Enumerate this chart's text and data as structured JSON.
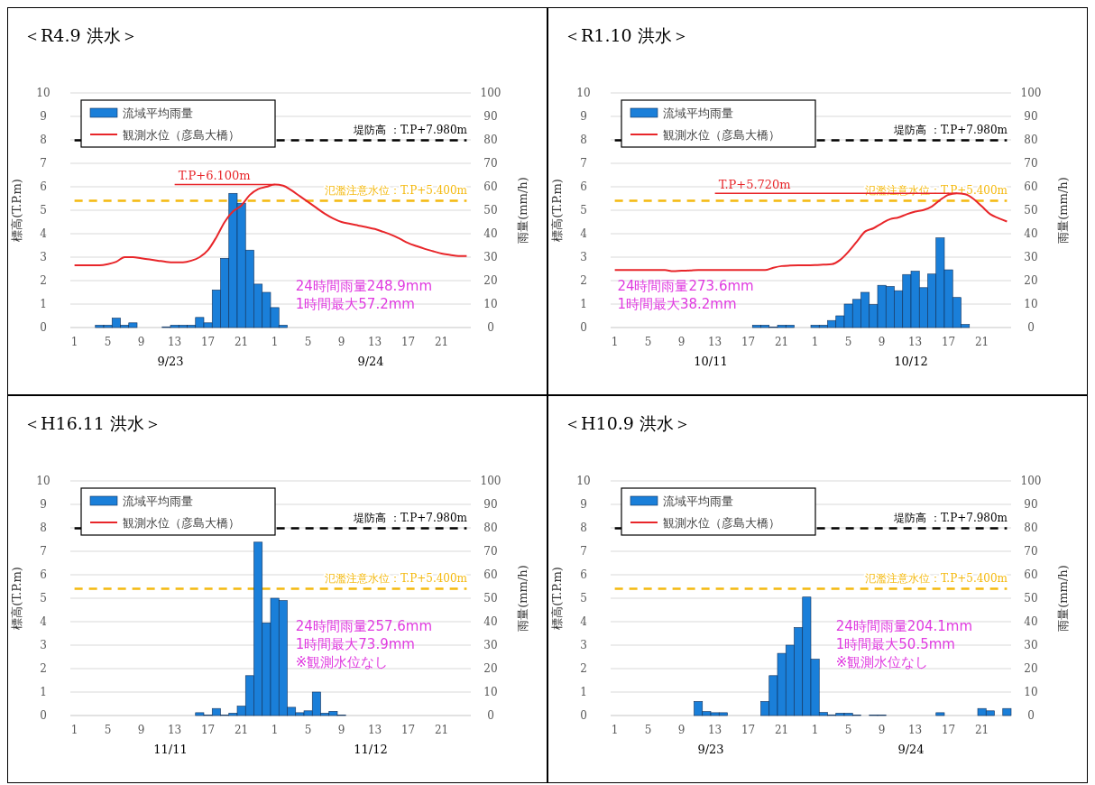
{
  "chart_data": [
    {
      "type": "bar",
      "title": "＜R4.9 洪水＞",
      "categories": [
        "1",
        null,
        null,
        null,
        "5",
        null,
        null,
        null,
        "9",
        null,
        null,
        null,
        "13",
        null,
        null,
        null,
        "17",
        null,
        null,
        null,
        "21",
        null,
        null,
        null,
        "1",
        null,
        null,
        null,
        "5",
        null,
        null,
        null,
        "9",
        null,
        null,
        null,
        "13",
        null,
        null,
        null,
        "17",
        null,
        null,
        null,
        "21",
        null,
        null,
        null
      ],
      "series": [
        {
          "name": "流域平均雨量",
          "axis": "y2",
          "color": "#1a7fd9",
          "values": [
            null,
            null,
            null,
            1,
            1,
            4,
            1,
            2,
            null,
            null,
            null,
            0.3,
            1,
            1,
            1,
            4.3,
            2,
            16,
            29.5,
            57.2,
            53,
            33,
            18.5,
            15,
            8.5,
            1,
            null,
            null,
            null,
            null,
            null,
            null,
            null,
            null,
            null,
            null,
            null,
            null,
            null,
            null,
            null,
            null,
            null,
            null,
            null,
            null,
            null,
            null
          ]
        },
        {
          "name": "観測水位（彦島大橋）",
          "type": "line",
          "color": "#e8262a",
          "values": [
            2.65,
            2.65,
            2.65,
            2.65,
            2.7,
            2.8,
            3.0,
            3.0,
            2.95,
            2.9,
            2.85,
            2.8,
            2.78,
            2.78,
            2.85,
            3.0,
            3.3,
            3.85,
            4.5,
            4.95,
            5.2,
            5.65,
            5.9,
            6.0,
            6.1,
            6.05,
            5.85,
            5.6,
            5.35,
            5.1,
            4.85,
            4.65,
            4.5,
            4.42,
            4.35,
            4.28,
            4.2,
            4.08,
            3.95,
            3.78,
            3.6,
            3.47,
            3.35,
            3.25,
            3.15,
            3.1,
            3.05,
            3.05
          ]
        }
      ],
      "ylabel": "標高(T.P.m)",
      "y2label": "雨量(mm/h)",
      "ylim": [
        0,
        10
      ],
      "yticks": [
        0,
        1,
        2,
        3,
        4,
        5,
        6,
        7,
        8,
        9,
        10
      ],
      "y2lim": [
        0,
        100
      ],
      "y2ticks": [
        0,
        10,
        20,
        30,
        40,
        50,
        60,
        70,
        80,
        90,
        100
      ],
      "grid": "y",
      "legend": "top left",
      "ref_lines": [
        {
          "axis": "y",
          "value": 7.98,
          "label": "堤防高 ：T.P+7.980m",
          "color": "#000000",
          "line_style": "dashed"
        },
        {
          "axis": "y",
          "value": 5.4,
          "label": "氾濫注意水位：T.P+5.400m",
          "color": "#f4b90f",
          "line_style": "dashed"
        },
        {
          "axis": "y",
          "value": 6.1,
          "label": "T.P+6.100m",
          "color": "#e8262a",
          "line_style": "solid"
        }
      ],
      "annotations": [
        "9/23",
        "9/24",
        "24時間雨量248.9mm",
        "1時間最大57.2mm"
      ]
    },
    {
      "type": "bar",
      "title": "＜R1.10 洪水＞",
      "categories": [
        "1",
        null,
        null,
        null,
        "5",
        null,
        null,
        null,
        "9",
        null,
        null,
        null,
        "13",
        null,
        null,
        null,
        "17",
        null,
        null,
        null,
        "21",
        null,
        null,
        null,
        "1",
        null,
        null,
        null,
        "5",
        null,
        null,
        null,
        "9",
        null,
        null,
        null,
        "13",
        null,
        null,
        null,
        "17",
        null,
        null,
        null,
        "21",
        null,
        null,
        null
      ],
      "series": [
        {
          "name": "流域平均雨量",
          "axis": "y2",
          "color": "#1a7fd9",
          "values": [
            null,
            null,
            null,
            null,
            null,
            null,
            null,
            null,
            null,
            null,
            null,
            null,
            null,
            null,
            null,
            null,
            null,
            1,
            1,
            0.2,
            1,
            1,
            null,
            null,
            1,
            1,
            3,
            5,
            10,
            12,
            15,
            9.8,
            18,
            17.5,
            15.7,
            22.6,
            24,
            17,
            22.8,
            38.2,
            24.6,
            12.8,
            1.3,
            null,
            null,
            null,
            null,
            null
          ]
        },
        {
          "name": "観測水位（彦島大橋）",
          "type": "line",
          "color": "#e8262a",
          "values": [
            2.45,
            2.45,
            2.45,
            2.45,
            2.45,
            2.45,
            2.45,
            2.4,
            2.42,
            2.43,
            2.45,
            2.45,
            2.45,
            2.45,
            2.45,
            2.45,
            2.45,
            2.45,
            2.45,
            2.55,
            2.62,
            2.64,
            2.65,
            2.65,
            2.66,
            2.68,
            2.7,
            2.88,
            3.23,
            3.66,
            4.09,
            4.23,
            4.44,
            4.62,
            4.69,
            4.83,
            4.94,
            5.01,
            5.16,
            5.44,
            5.66,
            5.72,
            5.68,
            5.48,
            5.16,
            4.83,
            4.66,
            4.52
          ]
        }
      ],
      "ylabel": "標高(T.P.m)",
      "y2label": "雨量(mm/h)",
      "ylim": [
        0,
        10
      ],
      "yticks": [
        0,
        1,
        2,
        3,
        4,
        5,
        6,
        7,
        8,
        9,
        10
      ],
      "y2lim": [
        0,
        100
      ],
      "y2ticks": [
        0,
        10,
        20,
        30,
        40,
        50,
        60,
        70,
        80,
        90,
        100
      ],
      "grid": "y",
      "legend": "top left",
      "ref_lines": [
        {
          "axis": "y",
          "value": 7.98,
          "label": "堤防高 ：T.P+7.980m",
          "color": "#000000",
          "line_style": "dashed"
        },
        {
          "axis": "y",
          "value": 5.4,
          "label": "氾濫注意水位：T.P+5.400m",
          "color": "#f4b90f",
          "line_style": "dashed"
        },
        {
          "axis": "y",
          "value": 5.72,
          "label": "T.P+5.720m",
          "color": "#e8262a",
          "line_style": "solid"
        }
      ],
      "annotations": [
        "10/11",
        "10/12",
        "24時間雨量273.6mm",
        "1時間最大38.2mm"
      ]
    },
    {
      "type": "bar",
      "title": "＜H16.11 洪水＞",
      "categories": [
        "1",
        null,
        null,
        null,
        "5",
        null,
        null,
        null,
        "9",
        null,
        null,
        null,
        "13",
        null,
        null,
        null,
        "17",
        null,
        null,
        null,
        "21",
        null,
        null,
        null,
        "1",
        null,
        null,
        null,
        "5",
        null,
        null,
        null,
        "9",
        null,
        null,
        null,
        "13",
        null,
        null,
        null,
        "17",
        null,
        null,
        null,
        "21",
        null,
        null,
        null
      ],
      "series": [
        {
          "name": "流域平均雨量",
          "axis": "y2",
          "color": "#1a7fd9",
          "values": [
            null,
            null,
            null,
            null,
            null,
            null,
            null,
            null,
            null,
            null,
            null,
            null,
            null,
            null,
            null,
            1.2,
            0.2,
            3,
            0.2,
            1,
            4,
            17,
            73.9,
            39.5,
            50,
            49,
            3.5,
            1.2,
            2,
            10,
            1,
            1.8,
            0.2,
            null,
            null,
            null,
            null,
            null,
            null,
            null,
            null,
            null,
            null,
            null,
            null,
            null,
            null,
            null
          ]
        },
        {
          "name": "観測水位（彦島大橋）",
          "type": "line",
          "color": "#e8262a",
          "values": [
            null,
            null,
            null,
            null,
            null,
            null,
            null,
            null,
            null,
            null,
            null,
            null,
            null,
            null,
            null,
            null,
            null,
            null,
            null,
            null,
            null,
            null,
            null,
            null,
            null,
            null,
            null,
            null,
            null,
            null,
            null,
            null,
            null,
            null,
            null,
            null,
            null,
            null,
            null,
            null,
            null,
            null,
            null,
            null,
            null,
            null,
            null,
            null
          ]
        }
      ],
      "ylabel": "標高(T.P.m)",
      "y2label": "雨量(mm/h)",
      "ylim": [
        0,
        10
      ],
      "yticks": [
        0,
        1,
        2,
        3,
        4,
        5,
        6,
        7,
        8,
        9,
        10
      ],
      "y2lim": [
        0,
        100
      ],
      "y2ticks": [
        0,
        10,
        20,
        30,
        40,
        50,
        60,
        70,
        80,
        90,
        100
      ],
      "grid": "y",
      "legend": "top left",
      "ref_lines": [
        {
          "axis": "y",
          "value": 7.98,
          "label": "堤防高 ：T.P+7.980m",
          "color": "#000000",
          "line_style": "dashed"
        },
        {
          "axis": "y",
          "value": 5.4,
          "label": "氾濫注意水位：T.P+5.400m",
          "color": "#f4b90f",
          "line_style": "dashed"
        }
      ],
      "annotations": [
        "11/11",
        "11/12",
        "24時間雨量257.6mm",
        "1時間最大73.9mm",
        "※観測水位なし"
      ]
    },
    {
      "type": "bar",
      "title": "＜H10.9 洪水＞",
      "categories": [
        "1",
        null,
        null,
        null,
        "5",
        null,
        null,
        null,
        "9",
        null,
        null,
        null,
        "13",
        null,
        null,
        null,
        "17",
        null,
        null,
        null,
        "21",
        null,
        null,
        null,
        "1",
        null,
        null,
        null,
        "5",
        null,
        null,
        null,
        "9",
        null,
        null,
        null,
        "13",
        null,
        null,
        null,
        "17",
        null,
        null,
        null,
        "21",
        null,
        null,
        null
      ],
      "series": [
        {
          "name": "流域平均雨量",
          "axis": "y2",
          "color": "#1a7fd9",
          "values": [
            null,
            null,
            null,
            null,
            null,
            null,
            null,
            null,
            null,
            null,
            6,
            1.7,
            1.2,
            1.2,
            null,
            null,
            null,
            null,
            6,
            17,
            26.5,
            30,
            37.5,
            50.5,
            24,
            1.3,
            0.3,
            1,
            1,
            0.2,
            null,
            0.2,
            0.2,
            null,
            null,
            null,
            null,
            null,
            null,
            1.2,
            null,
            null,
            null,
            null,
            3,
            2,
            null,
            3
          ]
        },
        {
          "name": "観測水位（彦島大橋）",
          "type": "line",
          "color": "#e8262a",
          "values": [
            null,
            null,
            null,
            null,
            null,
            null,
            null,
            null,
            null,
            null,
            null,
            null,
            null,
            null,
            null,
            null,
            null,
            null,
            null,
            null,
            null,
            null,
            null,
            null,
            null,
            null,
            null,
            null,
            null,
            null,
            null,
            null,
            null,
            null,
            null,
            null,
            null,
            null,
            null,
            null,
            null,
            null,
            null,
            null,
            null,
            null,
            null,
            null
          ]
        }
      ],
      "ylabel": "標高(T.P.m)",
      "y2label": "雨量(mm/h)",
      "ylim": [
        0,
        10
      ],
      "yticks": [
        0,
        1,
        2,
        3,
        4,
        5,
        6,
        7,
        8,
        9,
        10
      ],
      "y2lim": [
        0,
        100
      ],
      "y2ticks": [
        0,
        10,
        20,
        30,
        40,
        50,
        60,
        70,
        80,
        90,
        100
      ],
      "grid": "y",
      "legend": "top left",
      "ref_lines": [
        {
          "axis": "y",
          "value": 7.98,
          "label": "堤防高 ：T.P+7.980m",
          "color": "#000000",
          "line_style": "dashed"
        },
        {
          "axis": "y",
          "value": 5.4,
          "label": "氾濫注意水位：T.P+5.400m",
          "color": "#f4b90f",
          "line_style": "dashed"
        }
      ],
      "annotations": [
        "9/23",
        "9/24",
        "24時間雨量204.1mm",
        "1時間最大50.5mm",
        "※観測水位なし"
      ]
    }
  ]
}
